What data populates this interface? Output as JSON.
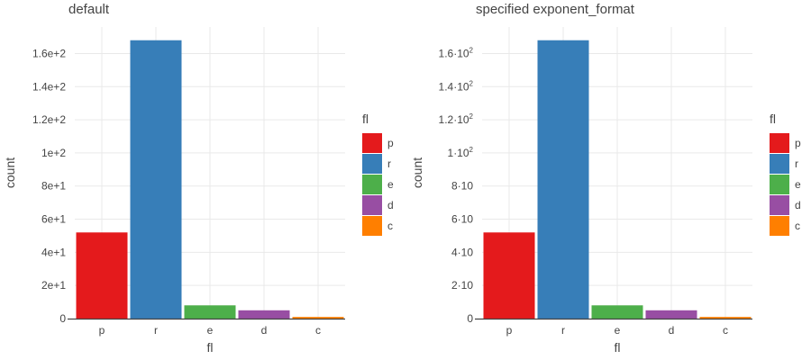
{
  "colors": {
    "p": "#e41a1c",
    "r": "#377eb8",
    "e": "#4daf4a",
    "d": "#984ea3",
    "c": "#ff7f00"
  },
  "chart_data": [
    {
      "type": "bar",
      "title": "default",
      "xlabel": "fl",
      "ylabel": "count",
      "categories": [
        "p",
        "r",
        "e",
        "d",
        "c"
      ],
      "values": [
        52,
        168,
        8,
        5,
        1
      ],
      "ylim": [
        0,
        176
      ],
      "yticks": [
        0,
        20,
        40,
        60,
        80,
        100,
        120,
        140,
        160
      ],
      "ytick_labels": [
        {
          "base": "0",
          "sup": ""
        },
        {
          "base": "2e+1",
          "sup": ""
        },
        {
          "base": "4e+1",
          "sup": ""
        },
        {
          "base": "6e+1",
          "sup": ""
        },
        {
          "base": "8e+1",
          "sup": ""
        },
        {
          "base": "1e+2",
          "sup": ""
        },
        {
          "base": "1.2e+2",
          "sup": ""
        },
        {
          "base": "1.4e+2",
          "sup": ""
        },
        {
          "base": "1.6e+2",
          "sup": ""
        }
      ],
      "legend": {
        "title": "fl",
        "entries": [
          "p",
          "r",
          "e",
          "d",
          "c"
        ],
        "placement": "right"
      },
      "grid": true
    },
    {
      "type": "bar",
      "title": "specified exponent_format",
      "xlabel": "fl",
      "ylabel": "count",
      "categories": [
        "p",
        "r",
        "e",
        "d",
        "c"
      ],
      "values": [
        52,
        168,
        8,
        5,
        1
      ],
      "ylim": [
        0,
        176
      ],
      "yticks": [
        0,
        20,
        40,
        60,
        80,
        100,
        120,
        140,
        160
      ],
      "ytick_labels": [
        {
          "base": "0",
          "sup": ""
        },
        {
          "base": "2·10",
          "sup": ""
        },
        {
          "base": "4·10",
          "sup": ""
        },
        {
          "base": "6·10",
          "sup": ""
        },
        {
          "base": "8·10",
          "sup": ""
        },
        {
          "base": "1·10",
          "sup": "2"
        },
        {
          "base": "1.2·10",
          "sup": "2"
        },
        {
          "base": "1.4·10",
          "sup": "2"
        },
        {
          "base": "1.6·10",
          "sup": "2"
        }
      ],
      "legend": {
        "title": "fl",
        "entries": [
          "p",
          "r",
          "e",
          "d",
          "c"
        ],
        "placement": "right"
      },
      "grid": true
    }
  ]
}
